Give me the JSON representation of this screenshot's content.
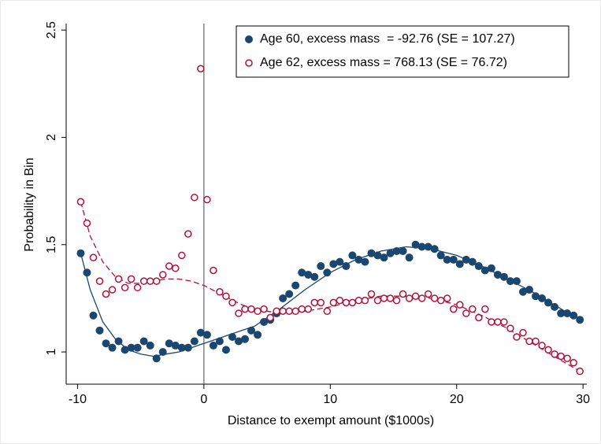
{
  "chart_data": {
    "type": "scatter",
    "x_label": "Distance to exempt amount ($1000s)",
    "y_label": "Probability in Bin",
    "xlim": [
      -10.9,
      30.3
    ],
    "ylim": [
      0.85,
      2.53
    ],
    "xticks": [
      -10,
      0,
      10,
      20,
      30
    ],
    "yticks": [
      1,
      1.5,
      2,
      2.5
    ],
    "reference_x": 0,
    "legend": "top-right",
    "grid": false,
    "x": [
      -9.75,
      -9.25,
      -8.75,
      -8.25,
      -7.75,
      -7.25,
      -6.75,
      -6.25,
      -5.75,
      -5.25,
      -4.75,
      -4.25,
      -3.75,
      -3.25,
      -2.75,
      -2.25,
      -1.75,
      -1.25,
      -0.75,
      -0.25,
      0.25,
      0.75,
      1.25,
      1.75,
      2.25,
      2.75,
      3.25,
      3.75,
      4.25,
      4.75,
      5.25,
      5.75,
      6.25,
      6.75,
      7.25,
      7.75,
      8.25,
      8.75,
      9.25,
      9.75,
      10.25,
      10.75,
      11.25,
      11.75,
      12.25,
      12.75,
      13.25,
      13.75,
      14.25,
      14.75,
      15.25,
      15.75,
      16.25,
      16.75,
      17.25,
      17.75,
      18.25,
      18.75,
      19.25,
      19.75,
      20.25,
      20.75,
      21.25,
      21.75,
      22.25,
      22.75,
      23.25,
      23.75,
      24.25,
      24.75,
      25.25,
      25.75,
      26.25,
      26.75,
      27.25,
      27.75,
      28.25,
      28.75,
      29.25,
      29.75
    ],
    "fit_x": [
      -9.75,
      -9,
      -8,
      -7,
      -6,
      -5,
      -4,
      -3,
      -2,
      -1,
      0,
      1,
      2,
      3,
      4,
      6,
      8,
      10,
      12,
      14,
      16,
      18,
      20,
      22,
      24,
      26,
      28,
      29.75
    ],
    "series": [
      {
        "name": "Age 60, excess mass  = -92.76 (SE = 107.27)",
        "color": "#1a476f",
        "marker": "filled",
        "line": "solid",
        "values": [
          1.46,
          1.37,
          1.17,
          1.1,
          1.04,
          1.02,
          1.05,
          1.01,
          1.02,
          1.02,
          1.05,
          1.03,
          0.97,
          1.0,
          1.04,
          1.03,
          1.02,
          1.02,
          1.05,
          1.09,
          1.08,
          1.03,
          1.05,
          1.01,
          1.07,
          1.05,
          1.06,
          1.1,
          1.08,
          1.14,
          1.15,
          1.18,
          1.25,
          1.27,
          1.31,
          1.37,
          1.36,
          1.35,
          1.4,
          1.37,
          1.41,
          1.42,
          1.4,
          1.45,
          1.43,
          1.42,
          1.46,
          1.45,
          1.44,
          1.46,
          1.47,
          1.47,
          1.44,
          1.5,
          1.49,
          1.49,
          1.48,
          1.45,
          1.43,
          1.43,
          1.41,
          1.43,
          1.42,
          1.4,
          1.38,
          1.39,
          1.36,
          1.35,
          1.33,
          1.33,
          1.28,
          1.29,
          1.26,
          1.25,
          1.23,
          1.21,
          1.18,
          1.18,
          1.17,
          1.15
        ],
        "fit_values": [
          1.46,
          1.29,
          1.14,
          1.06,
          1.01,
          0.99,
          0.98,
          0.99,
          1.0,
          1.02,
          1.04,
          1.06,
          1.08,
          1.1,
          1.12,
          1.2,
          1.29,
          1.37,
          1.43,
          1.47,
          1.49,
          1.48,
          1.45,
          1.4,
          1.34,
          1.28,
          1.21,
          1.15
        ]
      },
      {
        "name": "Age 62, excess mass = 768.13 (SE = 76.72)",
        "color": "#b0103a",
        "marker": "hollow",
        "line": "dashed",
        "values": [
          1.7,
          1.6,
          1.44,
          1.33,
          1.27,
          1.29,
          1.34,
          1.3,
          1.34,
          1.3,
          1.33,
          1.33,
          1.33,
          1.36,
          1.4,
          1.39,
          1.45,
          1.55,
          1.72,
          2.32,
          1.71,
          1.38,
          1.28,
          1.26,
          1.23,
          1.18,
          1.2,
          1.2,
          1.19,
          1.2,
          1.16,
          1.19,
          1.19,
          1.19,
          1.19,
          1.2,
          1.2,
          1.23,
          1.23,
          1.19,
          1.23,
          1.24,
          1.23,
          1.23,
          1.24,
          1.24,
          1.27,
          1.24,
          1.25,
          1.25,
          1.24,
          1.27,
          1.25,
          1.26,
          1.25,
          1.27,
          1.25,
          1.24,
          1.25,
          1.2,
          1.22,
          1.18,
          1.2,
          1.16,
          1.2,
          1.14,
          1.14,
          1.14,
          1.11,
          1.07,
          1.09,
          1.05,
          1.05,
          1.03,
          1.01,
          0.99,
          0.98,
          0.97,
          0.95,
          0.91
        ],
        "fit_values": [
          1.7,
          1.54,
          1.42,
          1.35,
          1.32,
          1.32,
          1.33,
          1.34,
          1.34,
          1.33,
          1.31,
          1.28,
          1.25,
          1.22,
          1.2,
          1.18,
          1.19,
          1.21,
          1.24,
          1.26,
          1.26,
          1.25,
          1.22,
          1.17,
          1.11,
          1.04,
          0.97,
          0.91
        ]
      }
    ]
  }
}
